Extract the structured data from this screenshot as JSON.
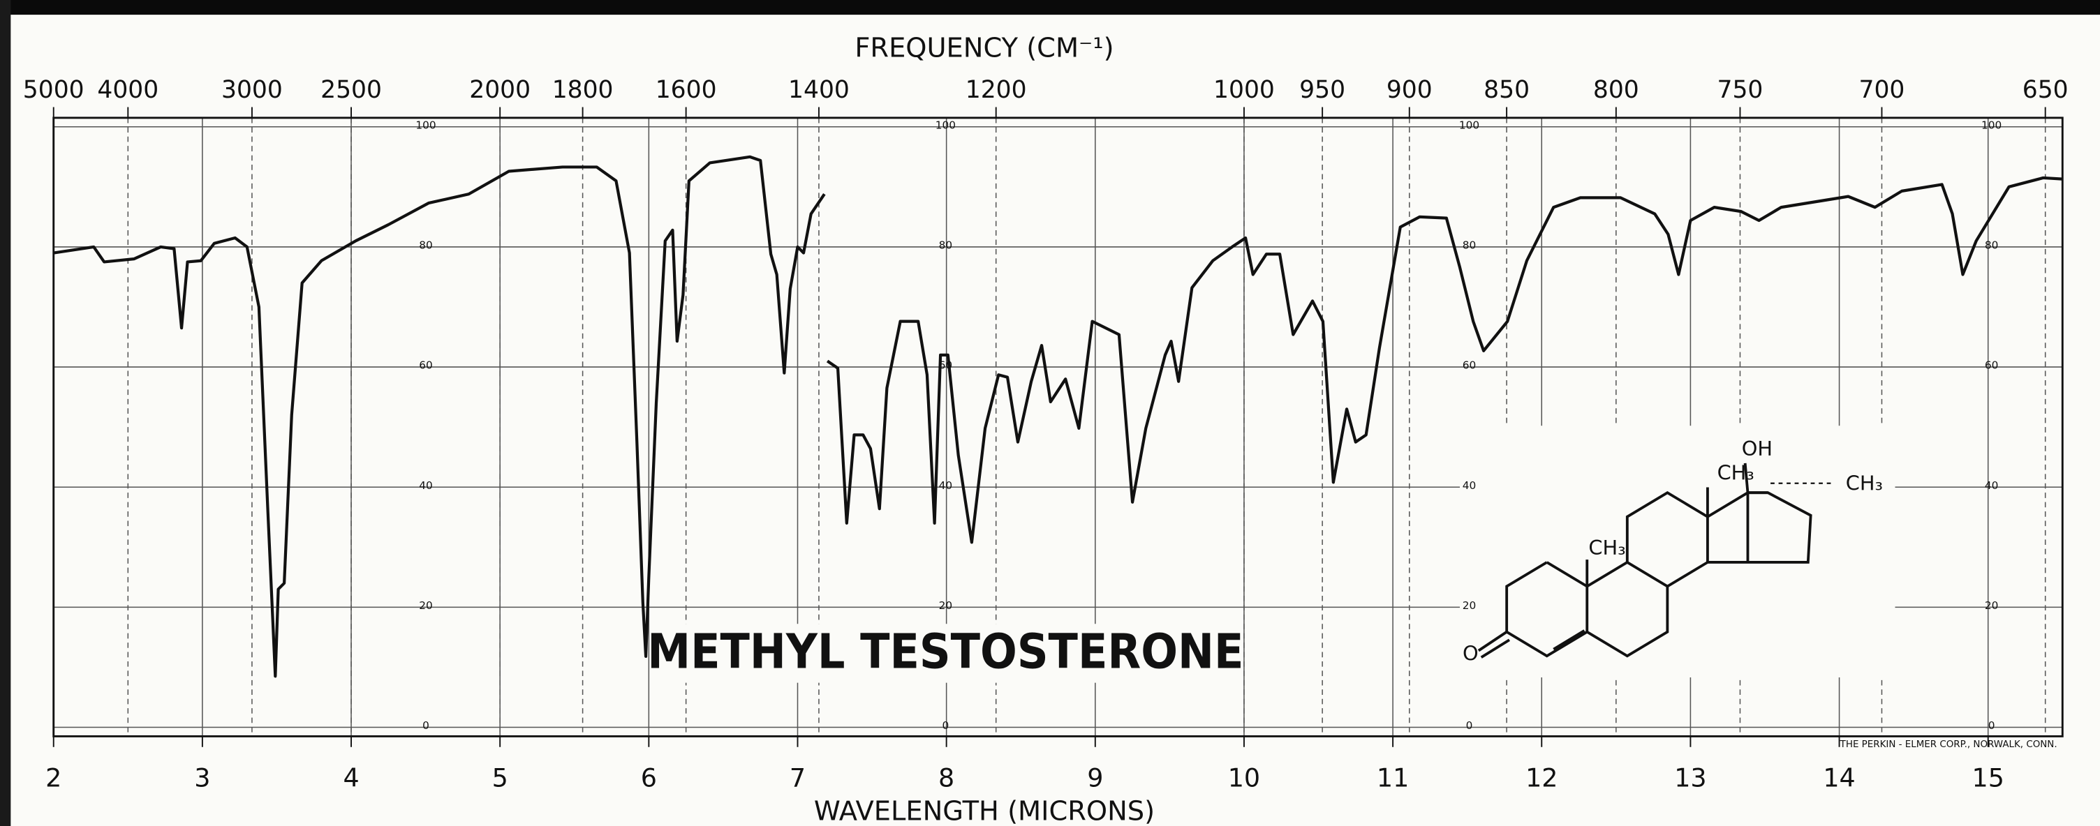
{
  "chart_data": {
    "type": "line",
    "title": "METHYL TESTOSTERONE",
    "x_label": "WAVELENGTH (MICRONS)",
    "x2_label": "FREQUENCY (CM⁻¹)",
    "credit": "THE PERKIN - ELMER CORP., NORWALK, CONN.",
    "xlim": [
      2,
      15.5
    ],
    "xticks": [
      2,
      3,
      4,
      5,
      6,
      7,
      8,
      9,
      10,
      11,
      12,
      13,
      14,
      15
    ],
    "x2ticks": [
      5000,
      4000,
      3000,
      2500,
      2000,
      1800,
      1600,
      1400,
      1200,
      1000,
      950,
      900,
      850,
      800,
      750,
      700,
      650
    ],
    "ylim": [
      -1.5,
      101.5
    ],
    "yticks": [
      0,
      20,
      40,
      60,
      80,
      100
    ],
    "grid": true,
    "series": [
      {
        "color": "#111111",
        "x": [
          2.0,
          2.27,
          2.34,
          2.54,
          2.72,
          2.81,
          2.86,
          2.9,
          2.99,
          3.08,
          3.22,
          3.3,
          3.38,
          3.44,
          3.49,
          3.51,
          3.55,
          3.6,
          3.67,
          3.8,
          4.03,
          4.25,
          4.52,
          4.79,
          5.06,
          5.42,
          5.65,
          5.78,
          5.87,
          5.92,
          5.96,
          5.98,
          6.0,
          6.05,
          6.11,
          6.16,
          6.19,
          6.23,
          6.27,
          6.41,
          6.68,
          6.75,
          6.82,
          6.86,
          6.91,
          6.95,
          7.0,
          7.04,
          7.09,
          7.18,
          null,
          7.2,
          7.27,
          7.33,
          7.38,
          7.44,
          7.49,
          7.55,
          7.6,
          7.69,
          7.81,
          7.87,
          7.92,
          7.96,
          8.01,
          8.08,
          8.17,
          8.26,
          8.35,
          8.41,
          8.48,
          8.57,
          8.64,
          8.7,
          8.8,
          8.89,
          8.98,
          9.16,
          9.25,
          9.34,
          9.47,
          9.51,
          9.56,
          9.65,
          9.79,
          9.92,
          10.01,
          10.06,
          10.15,
          10.24,
          10.33,
          10.46,
          10.53,
          10.6,
          10.69,
          10.75,
          10.82,
          10.91,
          11.05,
          11.18,
          11.36,
          11.45,
          11.54,
          11.61,
          11.77,
          11.9,
          12.08,
          12.26,
          12.53,
          12.76,
          12.85,
          12.92,
          13.0,
          13.16,
          13.34,
          13.46,
          13.61,
          14.06,
          14.24,
          14.42,
          14.69,
          14.76,
          14.83,
          14.92,
          15.14,
          15.37,
          15.5
        ],
        "values": [
          79,
          80,
          77.5,
          78,
          80,
          79.7,
          66.5,
          77.5,
          77.7,
          80.6,
          81.5,
          80,
          70,
          36,
          8.5,
          23,
          24,
          52,
          74,
          77.7,
          81,
          83.7,
          87.3,
          88.8,
          92.6,
          93.3,
          93.3,
          91,
          79,
          47.5,
          20.8,
          11.8,
          25,
          54,
          81,
          82.8,
          64.3,
          72,
          91,
          94,
          95,
          94.4,
          78.8,
          75.4,
          59,
          73,
          80,
          79,
          85.5,
          88.8,
          null,
          61,
          59.8,
          34,
          48.7,
          48.7,
          46.4,
          36.4,
          56.5,
          67.6,
          67.6,
          58.7,
          34,
          62,
          62,
          45.3,
          30.8,
          49.8,
          58.7,
          58.3,
          47.5,
          57.6,
          63.6,
          54.2,
          58,
          49.8,
          67.6,
          65.4,
          37.5,
          49.8,
          62,
          64.3,
          57.6,
          73.2,
          77.7,
          80,
          81.5,
          75.4,
          78.8,
          78.8,
          65.4,
          71,
          67.6,
          40.8,
          53,
          47.5,
          48.7,
          63.2,
          83.3,
          85,
          84.8,
          76.6,
          67.6,
          62.7,
          67.6,
          77.7,
          86.6,
          88.2,
          88.2,
          85.5,
          82.1,
          75.4,
          84.4,
          86.6,
          85.9,
          84.4,
          86.6,
          88.4,
          86.6,
          89.3,
          90.4,
          85.5,
          75.4,
          81,
          90,
          91.5,
          91.3
        ]
      }
    ],
    "structure": {
      "labels": [
        "OH",
        "CH₃",
        "CH₃",
        "CH₃",
        "O"
      ]
    }
  }
}
